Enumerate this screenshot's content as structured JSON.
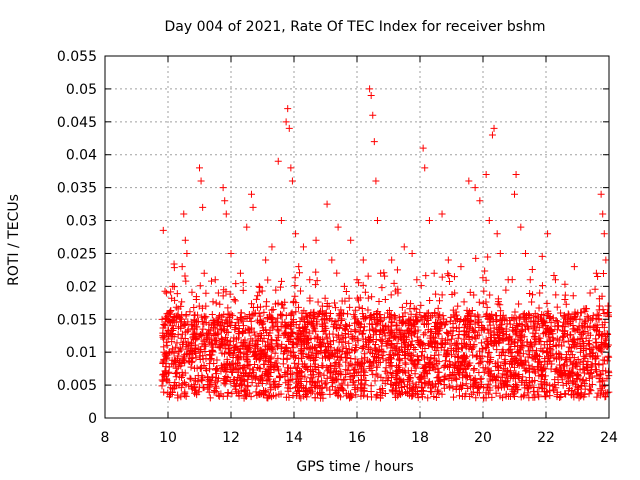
{
  "chart_data": {
    "type": "scatter",
    "title": "Day 004 of 2021, Rate Of TEC Index for receiver bshm",
    "xlabel": "GPS time / hours",
    "ylabel": "ROTI / TECUs",
    "xlim": [
      8,
      24
    ],
    "ylim": [
      0,
      0.055
    ],
    "x_ticks": [
      "8",
      "10",
      "12",
      "14",
      "16",
      "18",
      "20",
      "22",
      "24"
    ],
    "y_ticks": [
      "0",
      "0.005",
      "0.01",
      "0.015",
      "0.02",
      "0.025",
      "0.03",
      "0.035",
      "0.04",
      "0.045",
      "0.05",
      "0.055"
    ],
    "grid": true,
    "marker": "+",
    "color": "#ff0000",
    "series": [
      {
        "name": "ROTI",
        "points": [
          [
            9.85,
            0.0285
          ],
          [
            9.95,
            0.019
          ],
          [
            10.0,
            0.012
          ],
          [
            10.05,
            0.016
          ],
          [
            10.15,
            0.02
          ],
          [
            10.3,
            0.009
          ],
          [
            10.45,
            0.023
          ],
          [
            10.5,
            0.031
          ],
          [
            10.55,
            0.027
          ],
          [
            10.6,
            0.025
          ],
          [
            10.75,
            0.014
          ],
          [
            10.9,
            0.018
          ],
          [
            11.0,
            0.038
          ],
          [
            11.05,
            0.036
          ],
          [
            11.1,
            0.032
          ],
          [
            11.15,
            0.022
          ],
          [
            11.2,
            0.017
          ],
          [
            11.3,
            0.012
          ],
          [
            11.5,
            0.021
          ],
          [
            11.6,
            0.019
          ],
          [
            11.75,
            0.035
          ],
          [
            11.8,
            0.033
          ],
          [
            11.85,
            0.031
          ],
          [
            12.0,
            0.025
          ],
          [
            12.1,
            0.018
          ],
          [
            12.3,
            0.022
          ],
          [
            12.5,
            0.029
          ],
          [
            12.65,
            0.034
          ],
          [
            12.7,
            0.032
          ],
          [
            12.9,
            0.02
          ],
          [
            13.1,
            0.024
          ],
          [
            13.3,
            0.026
          ],
          [
            13.5,
            0.039
          ],
          [
            13.6,
            0.03
          ],
          [
            13.75,
            0.045
          ],
          [
            13.8,
            0.047
          ],
          [
            13.85,
            0.044
          ],
          [
            13.9,
            0.038
          ],
          [
            13.95,
            0.036
          ],
          [
            14.05,
            0.028
          ],
          [
            14.15,
            0.023
          ],
          [
            14.3,
            0.026
          ],
          [
            14.5,
            0.021
          ],
          [
            14.7,
            0.027
          ],
          [
            14.9,
            0.017
          ],
          [
            15.05,
            0.0325
          ],
          [
            15.2,
            0.024
          ],
          [
            15.4,
            0.029
          ],
          [
            15.6,
            0.02
          ],
          [
            15.8,
            0.027
          ],
          [
            16.0,
            0.021
          ],
          [
            16.2,
            0.024
          ],
          [
            16.4,
            0.05
          ],
          [
            16.45,
            0.049
          ],
          [
            16.5,
            0.046
          ],
          [
            16.55,
            0.042
          ],
          [
            16.6,
            0.036
          ],
          [
            16.65,
            0.03
          ],
          [
            16.75,
            0.022
          ],
          [
            16.9,
            0.018
          ],
          [
            17.1,
            0.024
          ],
          [
            17.3,
            0.019
          ],
          [
            17.5,
            0.026
          ],
          [
            17.75,
            0.025
          ],
          [
            17.9,
            0.021
          ],
          [
            18.1,
            0.041
          ],
          [
            18.15,
            0.038
          ],
          [
            18.3,
            0.03
          ],
          [
            18.45,
            0.022
          ],
          [
            18.7,
            0.031
          ],
          [
            18.9,
            0.024
          ],
          [
            19.1,
            0.019
          ],
          [
            19.3,
            0.023
          ],
          [
            19.55,
            0.036
          ],
          [
            19.75,
            0.035
          ],
          [
            19.9,
            0.033
          ],
          [
            20.1,
            0.037
          ],
          [
            20.2,
            0.03
          ],
          [
            20.3,
            0.043
          ],
          [
            20.35,
            0.044
          ],
          [
            20.45,
            0.028
          ],
          [
            20.55,
            0.025
          ],
          [
            20.8,
            0.021
          ],
          [
            21.0,
            0.034
          ],
          [
            21.05,
            0.037
          ],
          [
            21.2,
            0.029
          ],
          [
            21.35,
            0.025
          ],
          [
            21.5,
            0.021
          ],
          [
            21.8,
            0.019
          ],
          [
            22.05,
            0.028
          ],
          [
            22.3,
            0.021
          ],
          [
            22.6,
            0.018
          ],
          [
            22.9,
            0.023
          ],
          [
            23.1,
            0.016
          ],
          [
            23.4,
            0.019
          ],
          [
            23.6,
            0.022
          ],
          [
            23.75,
            0.034
          ],
          [
            23.8,
            0.031
          ],
          [
            23.85,
            0.028
          ],
          [
            23.9,
            0.024
          ],
          [
            23.95,
            0.016
          ]
        ]
      }
    ],
    "background": {
      "baseline_min": 0.003,
      "baseline_max": 0.016,
      "dense_region_x": [
        9.8,
        24.0
      ]
    }
  }
}
